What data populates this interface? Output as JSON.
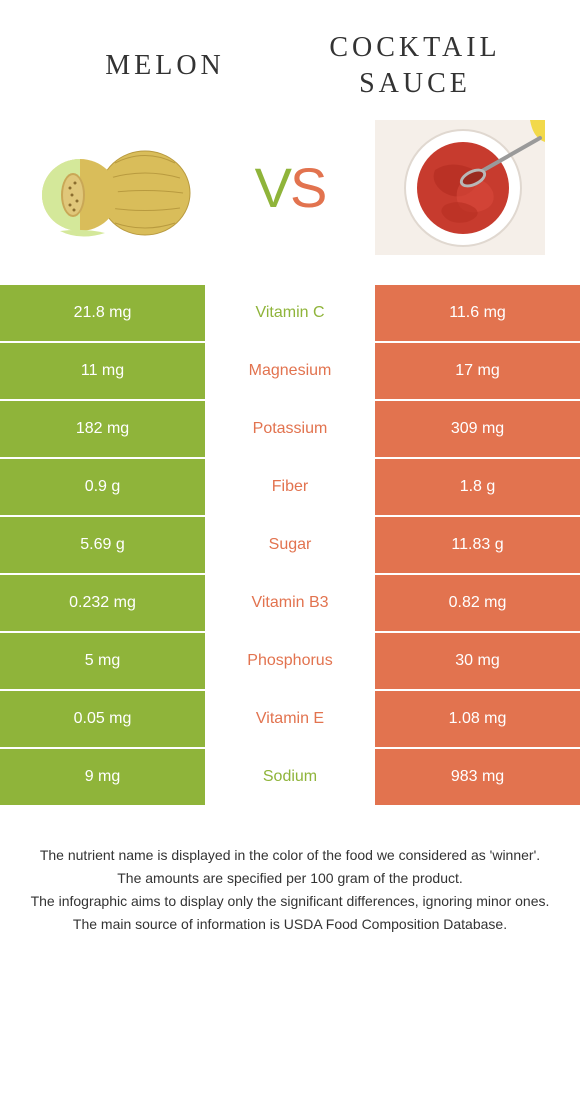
{
  "colors": {
    "left": "#8fb43a",
    "right": "#e2734f",
    "vs_left": "#8fb43a",
    "vs_right": "#e2734f"
  },
  "header": {
    "left_title": "Melon",
    "right_title": "Cocktail sauce",
    "vs_v": "V",
    "vs_s": "S"
  },
  "rows": [
    {
      "left": "21.8 mg",
      "label": "Vitamin C",
      "right": "11.6 mg",
      "winner": "left"
    },
    {
      "left": "11 mg",
      "label": "Magnesium",
      "right": "17 mg",
      "winner": "right"
    },
    {
      "left": "182 mg",
      "label": "Potassium",
      "right": "309 mg",
      "winner": "right"
    },
    {
      "left": "0.9 g",
      "label": "Fiber",
      "right": "1.8 g",
      "winner": "right"
    },
    {
      "left": "5.69 g",
      "label": "Sugar",
      "right": "11.83 g",
      "winner": "right"
    },
    {
      "left": "0.232 mg",
      "label": "Vitamin B3",
      "right": "0.82 mg",
      "winner": "right"
    },
    {
      "left": "5 mg",
      "label": "Phosphorus",
      "right": "30 mg",
      "winner": "right"
    },
    {
      "left": "0.05 mg",
      "label": "Vitamin E",
      "right": "1.08 mg",
      "winner": "right"
    },
    {
      "left": "9 mg",
      "label": "Sodium",
      "right": "983 mg",
      "winner": "left"
    }
  ],
  "footnotes": [
    "The nutrient name is displayed in the color of the food we considered as 'winner'.",
    "The amounts are specified per 100 gram of the product.",
    "The infographic aims to display only the significant differences, ignoring minor ones.",
    "The main source of information is USDA Food Composition Database."
  ]
}
